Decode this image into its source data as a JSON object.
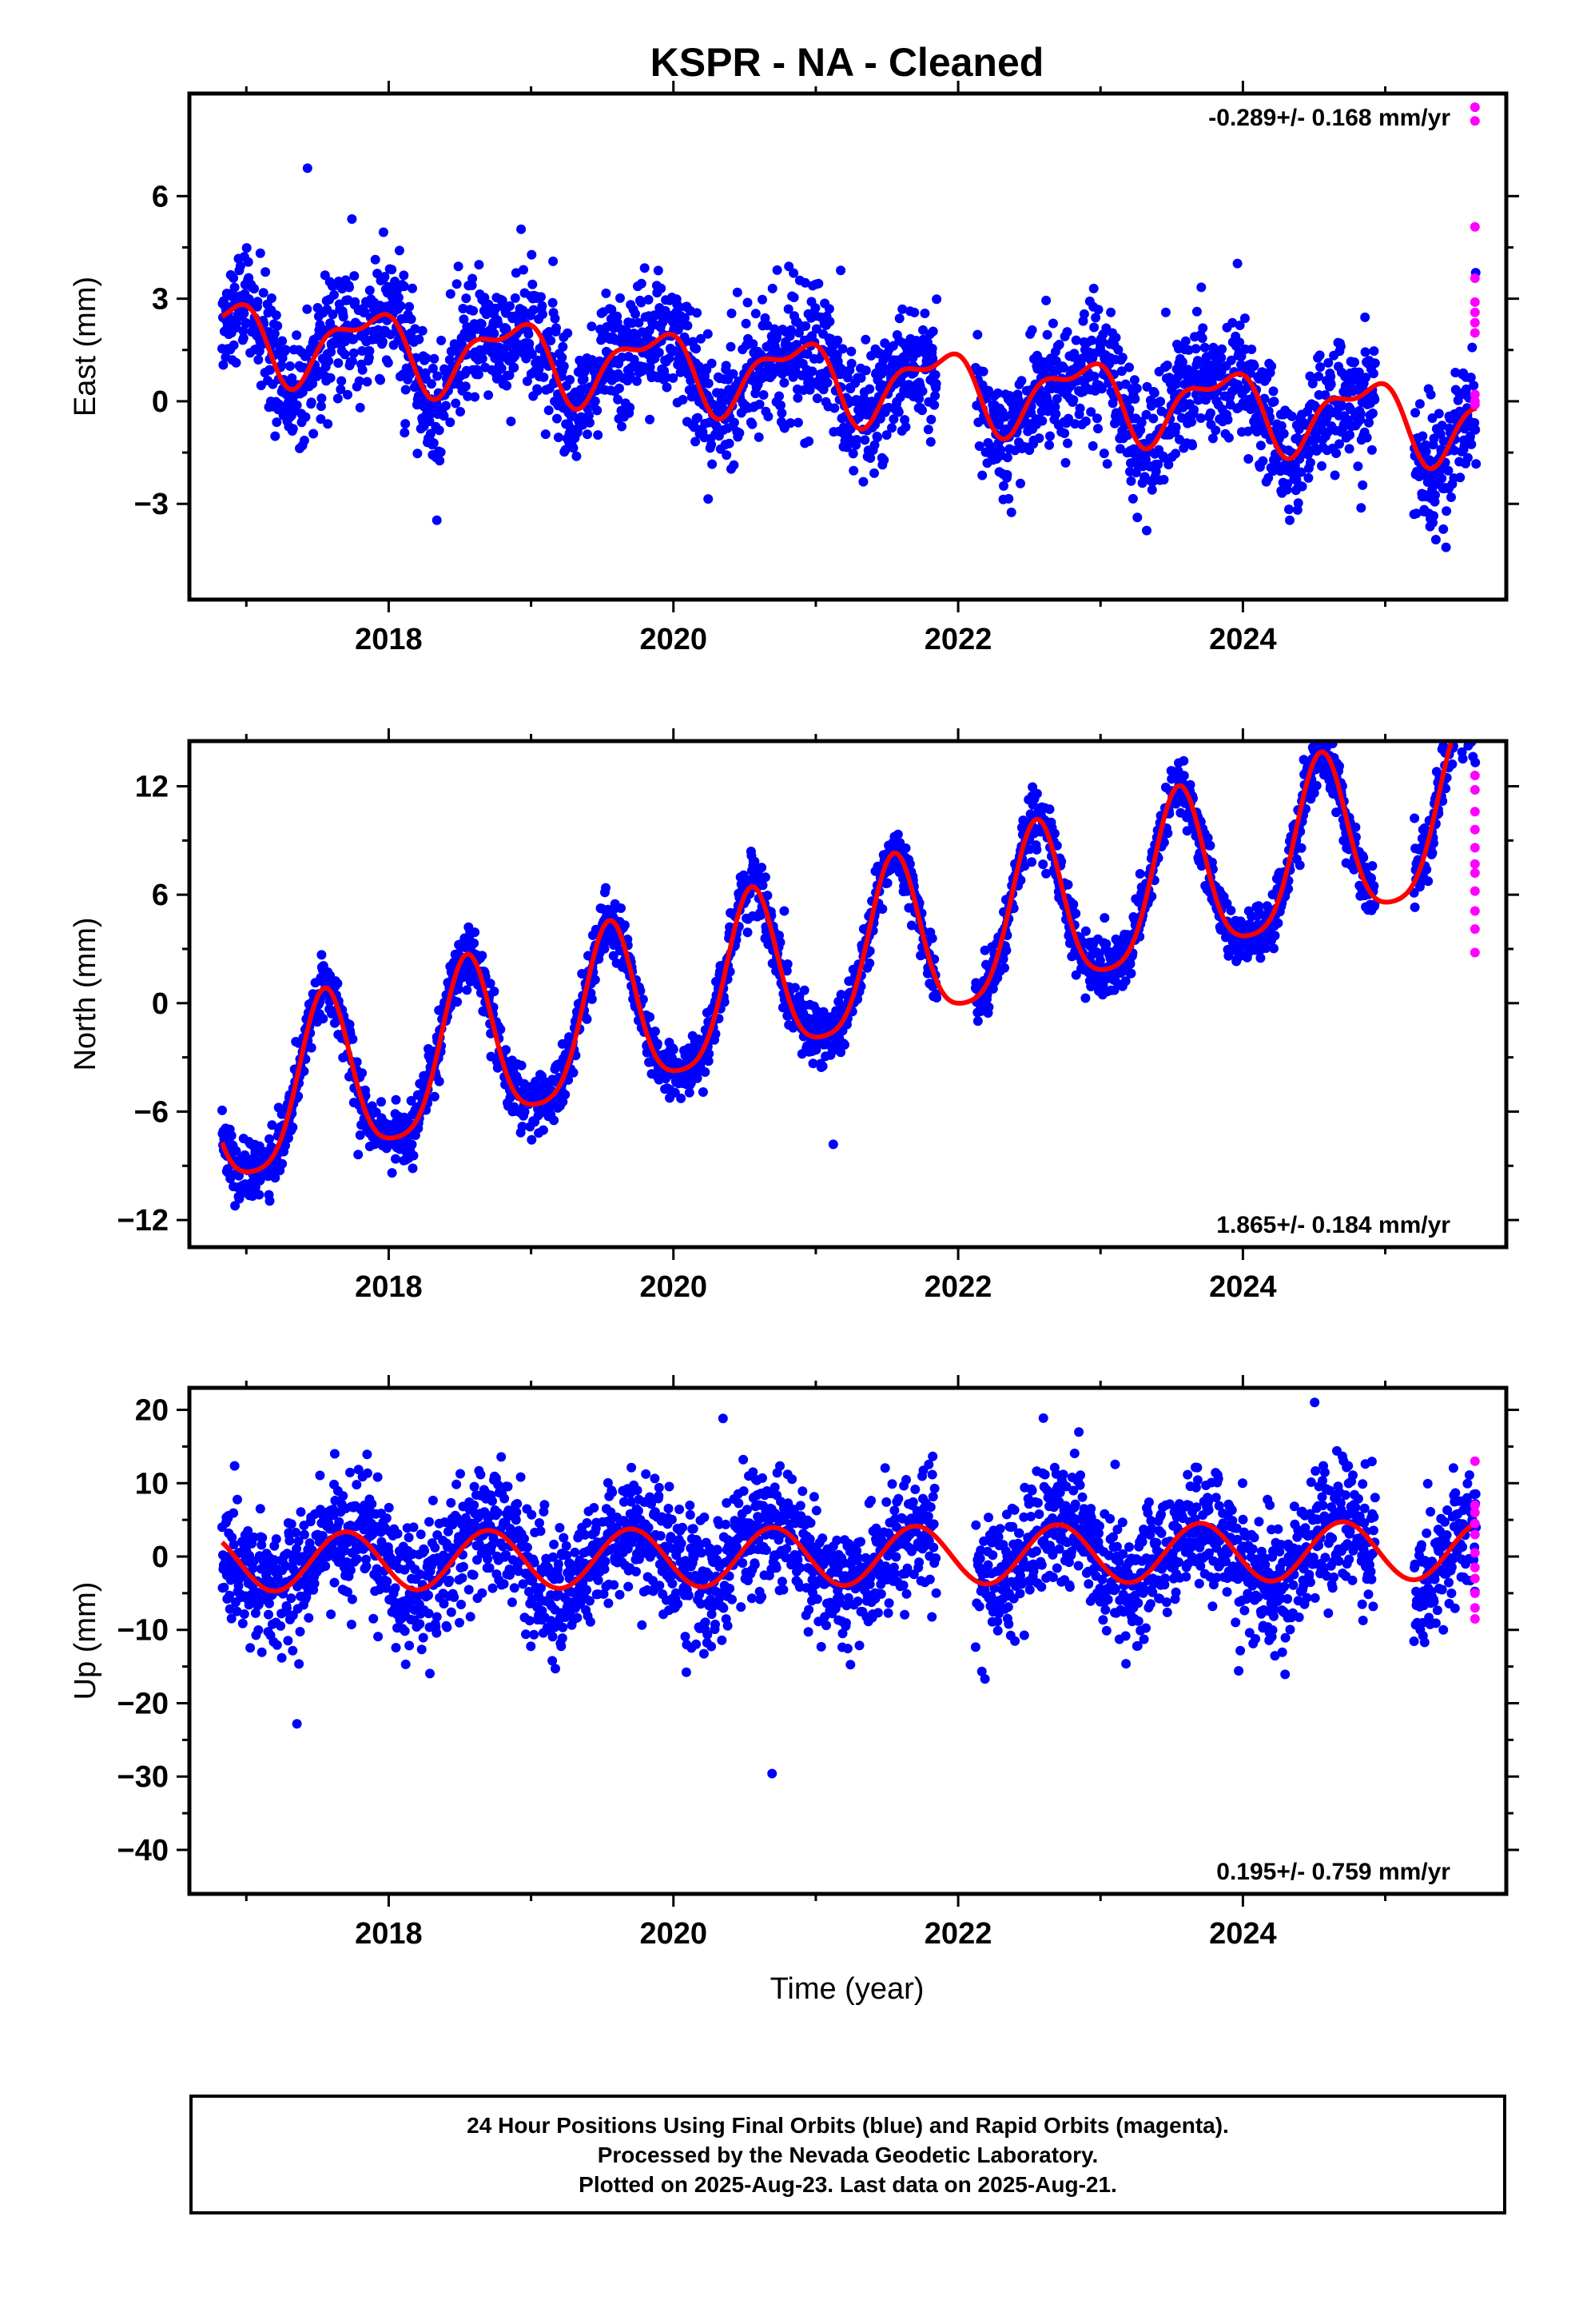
{
  "title": "KSPR  - NA - Cleaned",
  "xlabel": "Time (year)",
  "x_tick_labels": [
    "2018",
    "2020",
    "2022",
    "2024"
  ],
  "colors": {
    "final_orbits": "#0000ff",
    "rapid_orbits": "#ff00ff",
    "model": "#ff0000",
    "frame": "#000000"
  },
  "footer": {
    "line1": "24 Hour Positions Using Final Orbits (blue) and Rapid Orbits (magenta).",
    "line2": "Processed by the Nevada Geodetic Laboratory.",
    "line3": "Plotted on 2025-Aug-23. Last data on 2025-Aug-21."
  },
  "chart_data": [
    {
      "type": "scatter",
      "component": "east",
      "ylabel": "East (mm)",
      "rate_label": "-0.289+/- 0.168 mm/yr",
      "rate_label_position": "top-right",
      "xlim": [
        2016.6,
        2025.85
      ],
      "ylim": [
        -5.8,
        9.0
      ],
      "y_ticks": [
        -3,
        0,
        3,
        6
      ],
      "y_tick_labels": [
        "−3",
        "0",
        "3",
        "6"
      ],
      "grid": false,
      "start": 2016.83,
      "end": 2025.64,
      "model": {
        "offset_at_start": 1.9,
        "rate_mm_per_yr": -0.289,
        "annual_amplitude": 1.0,
        "annual_peak_year_fraction": 0.85,
        "semiannual_amplitude": 0.45,
        "semiannual_peak_year_fraction": 0.05,
        "scatter_sd": 0.9
      },
      "rapid_orbit_values": [
        8.6,
        8.2,
        5.1,
        3.6,
        2.9,
        2.6,
        2.3,
        2.0,
        0.2,
        0.0,
        -0.1
      ]
    },
    {
      "type": "scatter",
      "component": "north",
      "ylabel": "North (mm)",
      "rate_label": "1.865+/- 0.184 mm/yr",
      "rate_label_position": "bottom-right",
      "xlim": [
        2016.6,
        2025.85
      ],
      "ylim": [
        -13.5,
        14.5
      ],
      "y_ticks": [
        -12,
        -6,
        0,
        6,
        12
      ],
      "y_tick_labels": [
        "−12",
        "−6",
        "0",
        "6",
        "12"
      ],
      "grid": false,
      "start": 2016.83,
      "end": 2025.64,
      "model": {
        "offset_at_start": -6.0,
        "rate_mm_per_yr": 1.865,
        "annual_amplitude": 4.6,
        "annual_peak_year_fraction": 0.55,
        "semiannual_amplitude": 0.9,
        "semiannual_peak_year_fraction": 0.05,
        "scatter_sd": 0.8
      },
      "rapid_orbit_values": [
        12.6,
        11.8,
        10.6,
        9.6,
        8.6,
        7.7,
        7.2,
        6.2,
        5.1,
        4.1,
        2.8
      ]
    },
    {
      "type": "scatter",
      "component": "up",
      "ylabel": "Up (mm)",
      "rate_label": "0.195+/- 0.759 mm/yr",
      "rate_label_position": "bottom-right",
      "xlim": [
        2016.6,
        2025.85
      ],
      "ylim": [
        -46.0,
        23.0
      ],
      "y_ticks": [
        -40,
        -30,
        -20,
        -10,
        0,
        10,
        20
      ],
      "y_tick_labels": [
        "−40",
        "−30",
        "−20",
        "−10",
        "0",
        "10",
        "20"
      ],
      "grid": false,
      "start": 2016.83,
      "end": 2025.64,
      "model": {
        "offset_at_start": -0.8,
        "rate_mm_per_yr": 0.195,
        "annual_amplitude": 4.0,
        "annual_peak_year_fraction": 0.7,
        "semiannual_amplitude": 0.0,
        "semiannual_peak_year_fraction": 0.0,
        "scatter_sd": 4.3
      },
      "rapid_orbit_values": [
        13.0,
        7.0,
        6.0,
        4.5,
        3.0,
        0.5,
        -1.5,
        -3.0,
        -5.0,
        -7.0,
        -8.5
      ]
    }
  ]
}
